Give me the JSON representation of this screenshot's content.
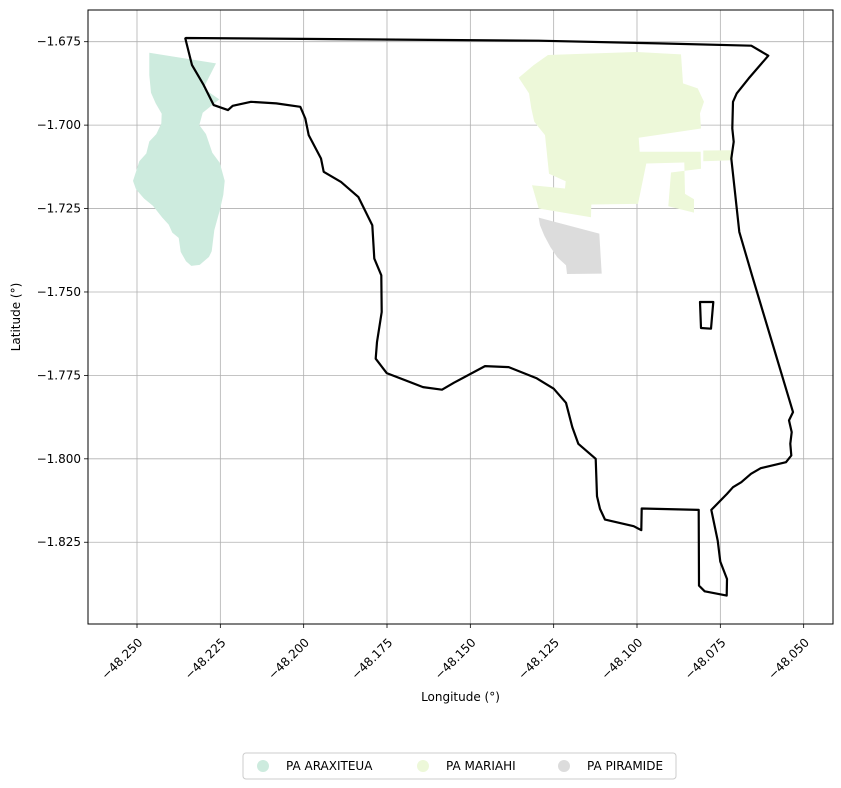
{
  "chart_data": {
    "type": "map",
    "xlabel": "Longitude (°)",
    "ylabel": "Latitude (°)",
    "xlim": [
      -48.2647,
      -48.0412
    ],
    "ylim": [
      -1.8495,
      -1.6655
    ],
    "grid": true,
    "x_ticks": [
      {
        "value": -48.25,
        "label": "−48.250"
      },
      {
        "value": -48.225,
        "label": "−48.225"
      },
      {
        "value": -48.2,
        "label": "−48.200"
      },
      {
        "value": -48.175,
        "label": "−48.175"
      },
      {
        "value": -48.15,
        "label": "−48.150"
      },
      {
        "value": -48.125,
        "label": "−48.125"
      },
      {
        "value": -48.1,
        "label": "−48.100"
      },
      {
        "value": -48.075,
        "label": "−48.075"
      },
      {
        "value": -48.05,
        "label": "−48.050"
      }
    ],
    "y_ticks": [
      {
        "value": -1.675,
        "label": "−1.675"
      },
      {
        "value": -1.7,
        "label": "−1.700"
      },
      {
        "value": -1.725,
        "label": "−1.725"
      },
      {
        "value": -1.75,
        "label": "−1.750"
      },
      {
        "value": -1.775,
        "label": "−1.775"
      },
      {
        "value": -1.8,
        "label": "−1.800"
      },
      {
        "value": -1.825,
        "label": "−1.825"
      }
    ],
    "legend_position": "bottom-center",
    "areas": [
      {
        "name": "PA ARAXITEUA",
        "color": "#cdebde",
        "polygons": [
          [
            [
              -48.2463,
              -1.6783
            ],
            [
              -48.2263,
              -1.6815
            ],
            [
              -48.2301,
              -1.689
            ],
            [
              -48.2253,
              -1.6923
            ],
            [
              -48.2303,
              -1.6963
            ],
            [
              -48.2313,
              -1.7
            ],
            [
              -48.2293,
              -1.7027
            ],
            [
              -48.2274,
              -1.7083
            ],
            [
              -48.2252,
              -1.7113
            ],
            [
              -48.2243,
              -1.7145
            ],
            [
              -48.2237,
              -1.7167
            ],
            [
              -48.2241,
              -1.7209
            ],
            [
              -48.2252,
              -1.7256
            ],
            [
              -48.2268,
              -1.7315
            ],
            [
              -48.2276,
              -1.7378
            ],
            [
              -48.2284,
              -1.7395
            ],
            [
              -48.2312,
              -1.7419
            ],
            [
              -48.2337,
              -1.7422
            ],
            [
              -48.2353,
              -1.7408
            ],
            [
              -48.2369,
              -1.738
            ],
            [
              -48.2375,
              -1.7338
            ],
            [
              -48.2394,
              -1.7322
            ],
            [
              -48.2405,
              -1.7298
            ],
            [
              -48.2424,
              -1.7277
            ],
            [
              -48.2452,
              -1.7242
            ],
            [
              -48.2479,
              -1.722
            ],
            [
              -48.2503,
              -1.7192
            ],
            [
              -48.2512,
              -1.7167
            ],
            [
              -48.2503,
              -1.714
            ],
            [
              -48.2493,
              -1.7108
            ],
            [
              -48.2472,
              -1.7085
            ],
            [
              -48.2463,
              -1.7049
            ],
            [
              -48.2442,
              -1.7027
            ],
            [
              -48.2427,
              -1.6995
            ],
            [
              -48.2426,
              -1.6966
            ],
            [
              -48.2444,
              -1.6935
            ],
            [
              -48.2458,
              -1.6903
            ],
            [
              -48.2463,
              -1.685
            ]
          ]
        ]
      },
      {
        "name": "PA MARIAHI",
        "color": "#edf8d9",
        "polygons": [
          [
            [
              -48.1267,
              -1.679
            ],
            [
              -48.116,
              -1.6786
            ],
            [
              -48.1,
              -1.6781
            ],
            [
              -48.0868,
              -1.6788
            ],
            [
              -48.0862,
              -1.6875
            ],
            [
              -48.0818,
              -1.689
            ],
            [
              -48.0799,
              -1.693
            ],
            [
              -48.0811,
              -1.6965
            ],
            [
              -48.0808,
              -1.701
            ],
            [
              -48.0995,
              -1.7038
            ],
            [
              -48.0992,
              -1.708
            ],
            [
              -48.0809,
              -1.708
            ],
            [
              -48.0808,
              -1.7131
            ],
            [
              -48.0898,
              -1.7142
            ],
            [
              -48.0906,
              -1.7243
            ],
            [
              -48.0829,
              -1.7262
            ],
            [
              -48.0829,
              -1.7222
            ],
            [
              -48.0856,
              -1.7206
            ],
            [
              -48.0858,
              -1.7112
            ],
            [
              -48.0972,
              -1.7115
            ],
            [
              -48.0997,
              -1.7236
            ],
            [
              -48.1137,
              -1.7238
            ],
            [
              -48.1138,
              -1.7276
            ],
            [
              -48.1295,
              -1.725
            ],
            [
              -48.1315,
              -1.718
            ],
            [
              -48.1216,
              -1.719
            ],
            [
              -48.1214,
              -1.7168
            ],
            [
              -48.1264,
              -1.7146
            ],
            [
              -48.1276,
              -1.703
            ],
            [
              -48.1308,
              -1.699
            ],
            [
              -48.1317,
              -1.695
            ],
            [
              -48.1324,
              -1.6905
            ],
            [
              -48.1355,
              -1.6858
            ],
            [
              -48.131,
              -1.682
            ]
          ],
          [
            [
              -48.0801,
              -1.7076
            ],
            [
              -48.0712,
              -1.7075
            ],
            [
              -48.0712,
              -1.7105
            ],
            [
              -48.0801,
              -1.7108
            ]
          ]
        ]
      },
      {
        "name": "PA PIRAMIDE",
        "color": "#dcdcdc",
        "polygons": [
          [
            [
              -48.1295,
              -1.7277
            ],
            [
              -48.1113,
              -1.7325
            ],
            [
              -48.1106,
              -1.7445
            ],
            [
              -48.121,
              -1.7446
            ],
            [
              -48.1213,
              -1.742
            ],
            [
              -48.1239,
              -1.7396
            ],
            [
              -48.126,
              -1.7365
            ],
            [
              -48.1278,
              -1.7331
            ],
            [
              -48.1291,
              -1.73
            ]
          ]
        ]
      }
    ],
    "boundaries": [
      {
        "color": "#000000",
        "polygons": [
          [
            [
              -48.2353,
              -1.6739
            ],
            [
              -48.1295,
              -1.6747
            ],
            [
              -48.0934,
              -1.6755
            ],
            [
              -48.0657,
              -1.6762
            ],
            [
              -48.0606,
              -1.6792
            ],
            [
              -48.0665,
              -1.686
            ],
            [
              -48.0701,
              -1.6905
            ],
            [
              -48.0712,
              -1.693
            ],
            [
              -48.0714,
              -1.701
            ],
            [
              -48.071,
              -1.705
            ],
            [
              -48.0717,
              -1.71
            ],
            [
              -48.0693,
              -1.732
            ],
            [
              -48.0655,
              -1.745
            ],
            [
              -48.0595,
              -1.765
            ],
            [
              -48.0532,
              -1.786
            ],
            [
              -48.0544,
              -1.7885
            ],
            [
              -48.0536,
              -1.792
            ],
            [
              -48.054,
              -1.7955
            ],
            [
              -48.0537,
              -1.799
            ],
            [
              -48.0553,
              -1.801
            ],
            [
              -48.0629,
              -1.8028
            ],
            [
              -48.0658,
              -1.8045
            ],
            [
              -48.0687,
              -1.807
            ],
            [
              -48.0712,
              -1.8085
            ],
            [
              -48.073,
              -1.8105
            ],
            [
              -48.0777,
              -1.8153
            ],
            [
              -48.0758,
              -1.8245
            ],
            [
              -48.075,
              -1.8308
            ],
            [
              -48.073,
              -1.836
            ],
            [
              -48.0731,
              -1.841
            ],
            [
              -48.0797,
              -1.8397
            ],
            [
              -48.0814,
              -1.838
            ],
            [
              -48.0815,
              -1.8153
            ],
            [
              -48.0986,
              -1.8149
            ],
            [
              -48.0987,
              -1.8214
            ],
            [
              -48.101,
              -1.8202
            ],
            [
              -48.1096,
              -1.8182
            ],
            [
              -48.1111,
              -1.815
            ],
            [
              -48.112,
              -1.8112
            ],
            [
              -48.1124,
              -1.8
            ],
            [
              -48.1176,
              -1.7955
            ],
            [
              -48.1194,
              -1.7905
            ],
            [
              -48.1213,
              -1.7832
            ],
            [
              -48.125,
              -1.779
            ],
            [
              -48.1302,
              -1.7758
            ],
            [
              -48.1385,
              -1.7725
            ],
            [
              -48.1456,
              -1.7722
            ],
            [
              -48.1549,
              -1.7772
            ],
            [
              -48.1585,
              -1.7793
            ],
            [
              -48.1642,
              -1.7785
            ],
            [
              -48.1751,
              -1.7743
            ],
            [
              -48.1784,
              -1.77
            ],
            [
              -48.178,
              -1.765
            ],
            [
              -48.1766,
              -1.756
            ],
            [
              -48.1767,
              -1.745
            ],
            [
              -48.1788,
              -1.74
            ],
            [
              -48.1794,
              -1.73
            ],
            [
              -48.1836,
              -1.7215
            ],
            [
              -48.1888,
              -1.717
            ],
            [
              -48.194,
              -1.714
            ],
            [
              -48.1948,
              -1.71
            ],
            [
              -48.1985,
              -1.703
            ],
            [
              -48.1995,
              -1.698
            ],
            [
              -48.201,
              -1.6945
            ],
            [
              -48.2082,
              -1.6935
            ],
            [
              -48.2158,
              -1.693
            ],
            [
              -48.2213,
              -1.6942
            ],
            [
              -48.2227,
              -1.6955
            ],
            [
              -48.227,
              -1.694
            ],
            [
              -48.23,
              -1.688
            ],
            [
              -48.2335,
              -1.682
            ],
            [
              -48.2355,
              -1.674
            ]
          ],
          [
            [
              -48.0811,
              -1.753
            ],
            [
              -48.0771,
              -1.753
            ],
            [
              -48.0778,
              -1.761
            ],
            [
              -48.0808,
              -1.7608
            ]
          ]
        ]
      }
    ]
  }
}
